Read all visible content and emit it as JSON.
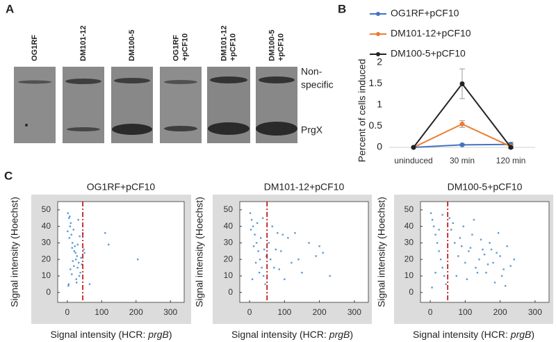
{
  "panels": [
    "A",
    "B",
    "C"
  ],
  "blot": {
    "lanes": [
      [
        "OG1RF"
      ],
      [
        "DM101-12"
      ],
      [
        "DM100-5"
      ],
      [
        "OG1RF",
        "+pCF10"
      ],
      [
        "DM101-12",
        "+pCF10"
      ],
      [
        "DM100-5",
        "+pCF10"
      ]
    ],
    "band_labels": [
      [
        "Non-",
        "specific"
      ],
      [
        "PrgX"
      ]
    ]
  },
  "chart_data": [
    {
      "type": "line",
      "ylabel": "Percent of cells induced",
      "categories": [
        "uninduced",
        "30 min",
        "120 min"
      ],
      "ylim": [
        0,
        2
      ],
      "yticks": [
        0,
        0.5,
        1,
        1.5,
        2
      ],
      "series": [
        {
          "name": "OG1RF+pCF10",
          "color": "#4472c4",
          "values": [
            0,
            0.06,
            0.07
          ],
          "errors": [
            0,
            0.02,
            0.05
          ]
        },
        {
          "name": "DM101-12+pCF10",
          "color": "#ed7d31",
          "values": [
            0,
            0.55,
            0.02
          ],
          "errors": [
            0,
            0.08,
            0.05
          ]
        },
        {
          "name": "DM100-5+pCF10",
          "color": "#222222",
          "values": [
            0,
            1.5,
            0
          ],
          "errors": [
            0,
            0.35,
            0.02
          ]
        }
      ]
    },
    {
      "type": "scatter",
      "title": "OG1RF+pCF10",
      "ylabel": "Signal intensity (Hoechst)",
      "xlabel": [
        "Signal intensity (HCR: ",
        "prgB",
        ")"
      ],
      "color": "#5b9bd5",
      "threshold": 45,
      "threshold_color": "#c00000",
      "xlim": [
        -28,
        340
      ],
      "xticks": [
        0,
        100,
        200,
        300
      ],
      "ylim": [
        -6,
        55
      ],
      "yticks": [
        0,
        10,
        20,
        30,
        40,
        50
      ],
      "x": [
        2,
        5,
        8,
        12,
        15,
        20,
        25,
        30,
        35,
        4,
        10,
        18,
        22,
        28,
        33,
        38,
        6,
        14,
        26,
        32,
        3,
        9,
        16,
        24,
        30,
        36,
        40,
        1,
        7,
        13,
        19,
        27,
        50,
        45,
        110,
        120,
        205,
        65,
        42,
        48
      ],
      "y": [
        48,
        45,
        40,
        35,
        30,
        25,
        20,
        15,
        10,
        5,
        42,
        38,
        28,
        22,
        18,
        12,
        33,
        27,
        8,
        44,
        4,
        14,
        19,
        24,
        29,
        34,
        21,
        37,
        46,
        11,
        16,
        6,
        24,
        36,
        36,
        29,
        20,
        5,
        17,
        26
      ]
    },
    {
      "type": "scatter",
      "title": "DM101-12+pCF10",
      "ylabel": "Signal intensity (Hoechst)",
      "xlabel": [
        "Signal intensity (HCR: ",
        "prgB",
        ")"
      ],
      "color": "#5b9bd5",
      "threshold": 50,
      "threshold_color": "#c00000",
      "xlim": [
        -28,
        340
      ],
      "xticks": [
        0,
        100,
        200,
        300
      ],
      "ylim": [
        -6,
        55
      ],
      "yticks": [
        0,
        10,
        20,
        30,
        40,
        50
      ],
      "x": [
        2,
        6,
        10,
        15,
        20,
        25,
        30,
        35,
        40,
        45,
        4,
        12,
        18,
        28,
        38,
        48,
        8,
        22,
        32,
        42,
        55,
        60,
        70,
        80,
        90,
        100,
        110,
        120,
        130,
        150,
        170,
        190,
        200,
        210,
        230,
        65,
        85,
        140,
        75,
        95
      ],
      "y": [
        48,
        44,
        40,
        35,
        30,
        25,
        20,
        15,
        10,
        5,
        38,
        28,
        18,
        12,
        45,
        22,
        8,
        42,
        33,
        26,
        30,
        20,
        15,
        36,
        25,
        8,
        33,
        18,
        36,
        12,
        30,
        22,
        28,
        24,
        10,
        40,
        14,
        20,
        26,
        35
      ]
    },
    {
      "type": "scatter",
      "title": "DM100-5+pCF10",
      "ylabel": "Signal intensity (Hoechst)",
      "xlabel": [
        "Signal intensity (HCR: ",
        "prgB",
        ")"
      ],
      "color": "#5b9bd5",
      "threshold": 50,
      "threshold_color": "#c00000",
      "xlim": [
        -28,
        340
      ],
      "xticks": [
        0,
        100,
        200,
        300
      ],
      "ylim": [
        -6,
        55
      ],
      "yticks": [
        0,
        10,
        20,
        30,
        40,
        50
      ],
      "x": [
        2,
        6,
        10,
        15,
        20,
        25,
        30,
        35,
        40,
        45,
        55,
        60,
        70,
        80,
        90,
        100,
        110,
        120,
        130,
        140,
        150,
        160,
        170,
        180,
        190,
        200,
        210,
        220,
        230,
        240,
        65,
        75,
        85,
        95,
        105,
        115,
        125,
        135,
        145,
        155,
        5,
        15,
        25,
        35,
        165,
        175,
        185,
        195,
        205,
        215
      ],
      "y": [
        48,
        44,
        40,
        35,
        30,
        25,
        20,
        15,
        10,
        5,
        45,
        38,
        30,
        22,
        28,
        18,
        25,
        35,
        15,
        20,
        26,
        12,
        30,
        18,
        24,
        22,
        14,
        28,
        16,
        20,
        42,
        10,
        33,
        40,
        8,
        27,
        44,
        12,
        32,
        23,
        3,
        12,
        38,
        47,
        17,
        26,
        6,
        36,
        10,
        4
      ]
    }
  ]
}
